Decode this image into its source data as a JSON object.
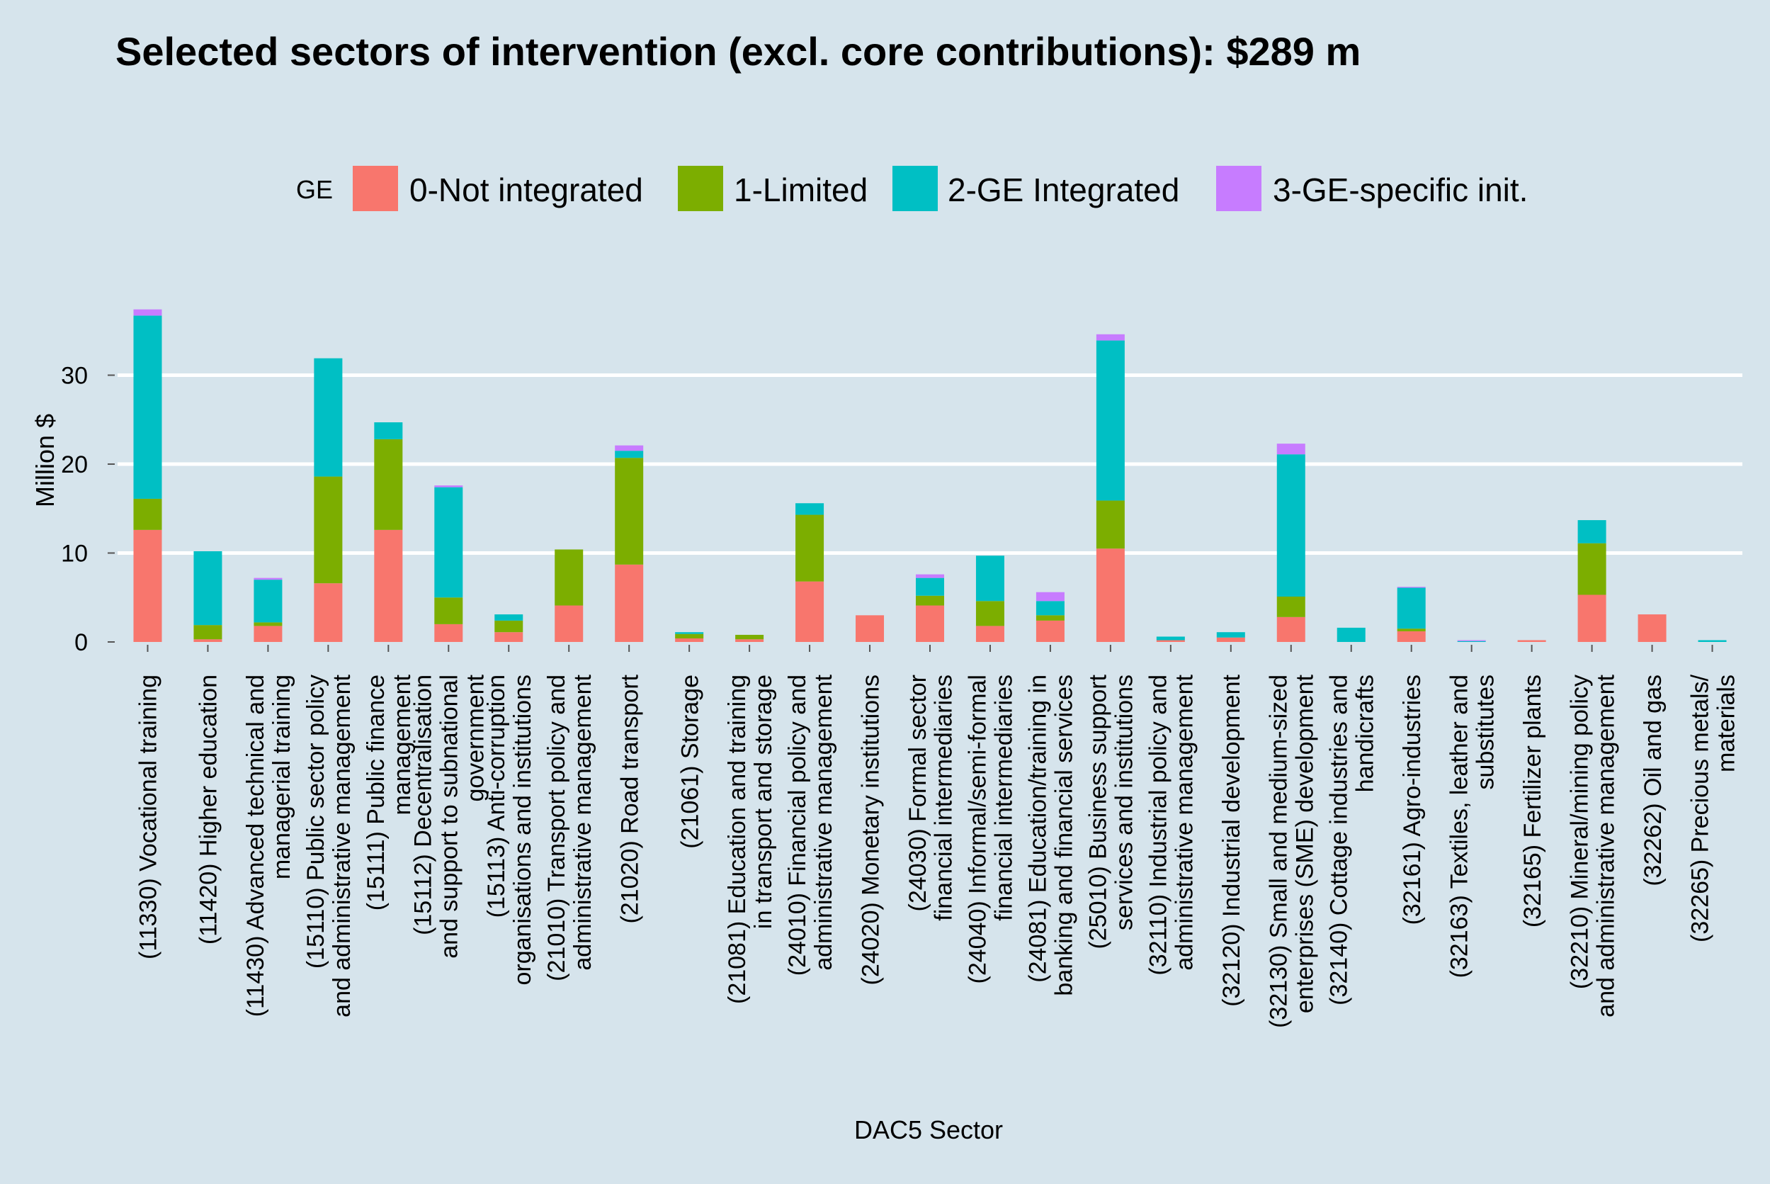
{
  "chart_data": {
    "type": "bar",
    "stacked": true,
    "title": "Selected sectors of intervention (excl. core contributions): $289 m",
    "xlabel": "DAC5 Sector",
    "ylabel": "Million $",
    "ylim": [
      0,
      38
    ],
    "yticks": [
      0,
      10,
      20,
      30
    ],
    "grid": "horizontal",
    "legend": {
      "title": "GE",
      "position": "top"
    },
    "categories": [
      "(11330) Vocational training",
      "(11420) Higher education",
      "(11430) Advanced technical and managerial training",
      "(15110) Public sector policy and administrative management",
      "(15111) Public finance management",
      "(15112) Decentralisation and support to subnational government",
      "(15113) Anti-corruption organisations and institutions",
      "(21010) Transport policy and administrative management",
      "(21020) Road transport",
      "(21061) Storage",
      "(21081) Education and training in transport and storage",
      "(24010) Financial policy and administrative management",
      "(24020) Monetary institutions",
      "(24030) Formal sector financial intermediaries",
      "(24040) Informal/semi-formal financial intermediaries",
      "(24081) Education/training in banking and financial services",
      "(25010) Business support services and institutions",
      "(32110) Industrial policy and administrative management",
      "(32120) Industrial development",
      "(32130) Small and medium-sized enterprises (SME) development",
      "(32140) Cottage industries and handicrafts",
      "(32161) Agro-industries",
      "(32163) Textiles, leather and substitutes",
      "(32165) Fertilizer plants",
      "(32210) Mineral/mining policy and administrative management",
      "(32262) Oil and gas",
      "(32265) Precious metals/ materials"
    ],
    "tick_labels": [
      [
        "(11330) Vocational training"
      ],
      [
        "(11420) Higher education"
      ],
      [
        "(11430) Advanced technical and",
        "managerial training"
      ],
      [
        "(15110) Public sector policy",
        "and administrative management"
      ],
      [
        "(15111) Public finance",
        "management"
      ],
      [
        "(15112) Decentralisation",
        "and support to subnational",
        "government"
      ],
      [
        "(15113) Anti-corruption",
        "organisations and institutions"
      ],
      [
        "(21010) Transport policy and",
        "administrative management"
      ],
      [
        "(21020) Road transport"
      ],
      [
        "(21061) Storage"
      ],
      [
        "(21081) Education and training",
        "in transport and storage"
      ],
      [
        "(24010) Financial policy and",
        "administrative management"
      ],
      [
        "(24020) Monetary institutions"
      ],
      [
        "(24030) Formal sector",
        "financial intermediaries"
      ],
      [
        "(24040) Informal/semi-formal",
        "financial intermediaries"
      ],
      [
        "(24081) Education/training in",
        "banking and financial services"
      ],
      [
        "(25010) Business support",
        "services and institutions"
      ],
      [
        "(32110) Industrial policy and",
        "administrative management"
      ],
      [
        "(32120) Industrial development"
      ],
      [
        "(32130) Small and medium-sized",
        "enterprises (SME) development"
      ],
      [
        "(32140) Cottage industries and",
        "handicrafts"
      ],
      [
        "(32161) Agro-industries"
      ],
      [
        "(32163) Textiles, leather and",
        "substitutes"
      ],
      [
        "(32165) Fertilizer plants"
      ],
      [
        "(32210) Mineral/mining policy",
        "and administrative management"
      ],
      [
        "(32262) Oil and gas"
      ],
      [
        "(32265) Precious metals/",
        "materials"
      ]
    ],
    "series": [
      {
        "name": "0-Not integrated",
        "color": "#F8766D",
        "values": [
          12.6,
          0.3,
          1.8,
          6.6,
          12.6,
          2.0,
          1.1,
          4.1,
          8.7,
          0.4,
          0.3,
          6.8,
          3.0,
          4.1,
          1.8,
          2.4,
          10.5,
          0.2,
          0.5,
          2.8,
          0.0,
          1.2,
          0.0,
          0.2,
          5.3,
          3.1,
          0.0
        ]
      },
      {
        "name": "1-Limited",
        "color": "#7CAE00",
        "values": [
          3.5,
          1.6,
          0.4,
          12.0,
          10.2,
          3.0,
          1.3,
          6.3,
          12.0,
          0.5,
          0.5,
          7.5,
          0.0,
          1.1,
          2.8,
          0.6,
          5.4,
          0.0,
          0.0,
          2.3,
          0.0,
          0.3,
          0.0,
          0.0,
          5.8,
          0.0,
          0.0
        ]
      },
      {
        "name": "2-GE Integrated",
        "color": "#00BFC4",
        "values": [
          20.6,
          8.3,
          4.8,
          13.3,
          1.9,
          12.4,
          0.7,
          0.0,
          0.8,
          0.2,
          0.0,
          1.3,
          0.0,
          2.0,
          5.1,
          1.6,
          18.0,
          0.4,
          0.6,
          16.0,
          1.6,
          4.6,
          0.1,
          0.0,
          2.6,
          0.0,
          0.2
        ]
      },
      {
        "name": "3-GE-specific init.",
        "color": "#C77CFF",
        "values": [
          0.7,
          0.0,
          0.2,
          0.0,
          0.0,
          0.2,
          0.0,
          0.0,
          0.6,
          0.0,
          0.0,
          0.0,
          0.0,
          0.4,
          0.0,
          1.0,
          0.7,
          0.0,
          0.0,
          1.2,
          0.0,
          0.1,
          0.1,
          0.0,
          0.0,
          0.0,
          0.0
        ]
      }
    ]
  }
}
